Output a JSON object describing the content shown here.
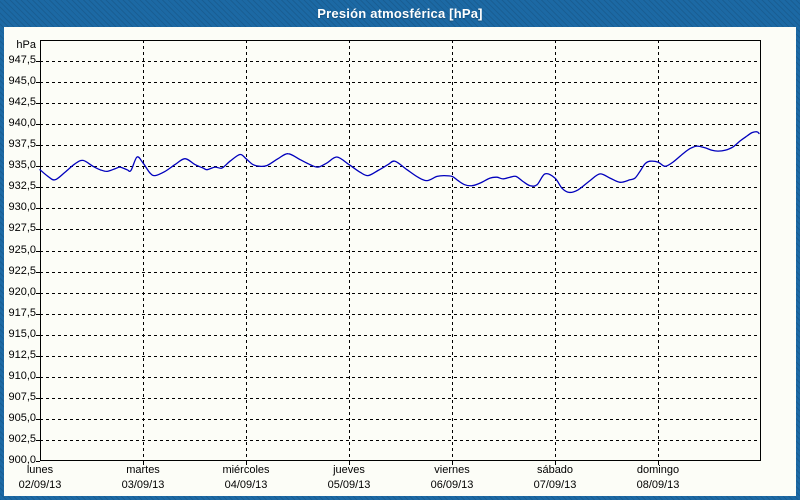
{
  "window": {
    "title": "Presión atmosférica [hPa]"
  },
  "colors": {
    "frame_blue": "#1c69a4",
    "line": "#0000bd",
    "grid": "#000000",
    "text": "#000000",
    "panel_bg": "#fcfdf7"
  },
  "chart_data": {
    "type": "line",
    "title": "Presión atmosférica [hPa]",
    "ylabel": "hPa",
    "xlabel": "",
    "grid": true,
    "legend": "none",
    "y_axis": {
      "min": 900,
      "max": 950,
      "tick_step": 2.5,
      "tick_labels_top_to_bottom": [
        "947,5",
        "945,0",
        "942,5",
        "940,0",
        "937,5",
        "935,0",
        "932,5",
        "930,0",
        "927,5",
        "925,0",
        "922,5",
        "920,0",
        "917,5",
        "915,0",
        "912,5",
        "910,0",
        "907,5",
        "905,0",
        "902,5",
        "900,0"
      ]
    },
    "x_axis": {
      "days_shown": 7,
      "categories": [
        {
          "day": "lunes",
          "date": "02/09/13"
        },
        {
          "day": "martes",
          "date": "03/09/13"
        },
        {
          "day": "miércoles",
          "date": "04/09/13"
        },
        {
          "day": "jueves",
          "date": "05/09/13"
        },
        {
          "day": "viernes",
          "date": "06/09/13"
        },
        {
          "day": "sábado",
          "date": "07/09/13"
        },
        {
          "day": "domingo",
          "date": "08/09/13"
        }
      ]
    },
    "series": [
      {
        "name": "Presión atmosférica",
        "color": "#0000bd",
        "points_days_hpa": [
          [
            0.0,
            934.6
          ],
          [
            0.078,
            933.8
          ],
          [
            0.146,
            933.4
          ],
          [
            0.243,
            934.3
          ],
          [
            0.34,
            935.3
          ],
          [
            0.417,
            935.7
          ],
          [
            0.515,
            935.0
          ],
          [
            0.583,
            934.6
          ],
          [
            0.65,
            934.4
          ],
          [
            0.728,
            934.7
          ],
          [
            0.777,
            934.9
          ],
          [
            0.845,
            934.6
          ],
          [
            0.883,
            934.5
          ],
          [
            0.942,
            936.1
          ],
          [
            1.0,
            935.4
          ],
          [
            1.068,
            934.2
          ],
          [
            1.117,
            933.9
          ],
          [
            1.214,
            934.4
          ],
          [
            1.311,
            935.2
          ],
          [
            1.408,
            935.9
          ],
          [
            1.505,
            935.2
          ],
          [
            1.583,
            934.8
          ],
          [
            1.621,
            934.6
          ],
          [
            1.699,
            934.9
          ],
          [
            1.767,
            934.8
          ],
          [
            1.845,
            935.6
          ],
          [
            1.942,
            936.4
          ],
          [
            2.0,
            935.9
          ],
          [
            2.068,
            935.2
          ],
          [
            2.136,
            935.0
          ],
          [
            2.204,
            935.1
          ],
          [
            2.311,
            935.9
          ],
          [
            2.408,
            936.5
          ],
          [
            2.524,
            935.8
          ],
          [
            2.621,
            935.2
          ],
          [
            2.699,
            934.9
          ],
          [
            2.786,
            935.4
          ],
          [
            2.883,
            936.1
          ],
          [
            3.0,
            935.2
          ],
          [
            3.107,
            934.3
          ],
          [
            3.184,
            933.9
          ],
          [
            3.282,
            934.5
          ],
          [
            3.379,
            935.2
          ],
          [
            3.447,
            935.6
          ],
          [
            3.563,
            934.6
          ],
          [
            3.67,
            933.7
          ],
          [
            3.757,
            933.3
          ],
          [
            3.854,
            933.8
          ],
          [
            3.922,
            933.9
          ],
          [
            4.0,
            933.8
          ],
          [
            4.058,
            933.3
          ],
          [
            4.126,
            932.8
          ],
          [
            4.194,
            932.7
          ],
          [
            4.272,
            933.0
          ],
          [
            4.369,
            933.6
          ],
          [
            4.437,
            933.7
          ],
          [
            4.495,
            933.5
          ],
          [
            4.563,
            933.7
          ],
          [
            4.621,
            933.8
          ],
          [
            4.689,
            933.2
          ],
          [
            4.757,
            932.7
          ],
          [
            4.825,
            932.8
          ],
          [
            4.903,
            934.1
          ],
          [
            5.0,
            933.6
          ],
          [
            5.068,
            932.4
          ],
          [
            5.136,
            931.9
          ],
          [
            5.223,
            932.2
          ],
          [
            5.34,
            933.3
          ],
          [
            5.437,
            934.1
          ],
          [
            5.534,
            933.6
          ],
          [
            5.631,
            933.1
          ],
          [
            5.728,
            933.4
          ],
          [
            5.777,
            933.6
          ],
          [
            5.825,
            934.4
          ],
          [
            5.874,
            935.3
          ],
          [
            5.922,
            935.6
          ],
          [
            6.0,
            935.5
          ],
          [
            6.068,
            935.0
          ],
          [
            6.146,
            935.5
          ],
          [
            6.243,
            936.5
          ],
          [
            6.311,
            937.1
          ],
          [
            6.379,
            937.4
          ],
          [
            6.456,
            937.2
          ],
          [
            6.524,
            936.9
          ],
          [
            6.583,
            936.8
          ],
          [
            6.65,
            936.9
          ],
          [
            6.728,
            937.3
          ],
          [
            6.796,
            938.0
          ],
          [
            6.864,
            938.6
          ],
          [
            6.913,
            939.0
          ],
          [
            6.961,
            939.1
          ],
          [
            6.981,
            938.9
          ]
        ]
      }
    ]
  }
}
